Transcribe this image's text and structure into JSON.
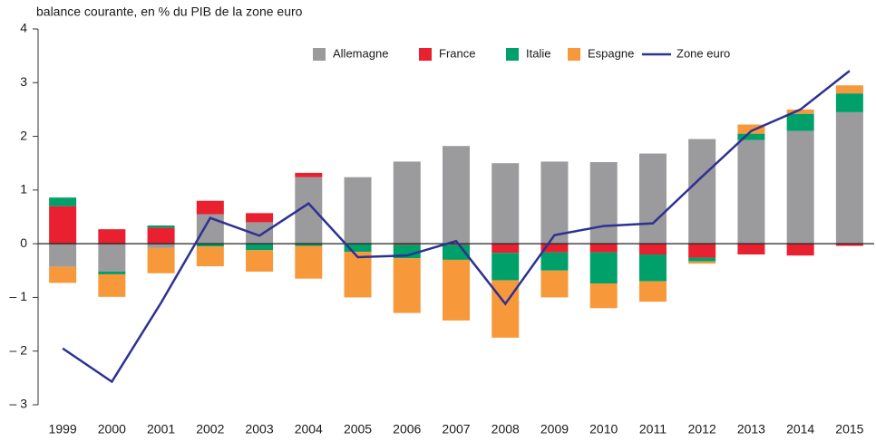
{
  "chart_data": {
    "type": "bar",
    "stacked": true,
    "title": "balance courante, en % du PIB de la zone euro",
    "categories": [
      "1999",
      "2000",
      "2001",
      "2002",
      "2003",
      "2004",
      "2005",
      "2006",
      "2007",
      "2008",
      "2009",
      "2010",
      "2011",
      "2012",
      "2013",
      "2014",
      "2015"
    ],
    "series": [
      {
        "name": "Allemagne",
        "color": "#9b9b9d",
        "type": "bar",
        "values": [
          -0.43,
          -0.52,
          -0.08,
          0.55,
          0.4,
          1.24,
          1.24,
          1.53,
          1.82,
          1.5,
          1.53,
          1.52,
          1.68,
          1.95,
          1.93,
          2.1,
          2.45
        ]
      },
      {
        "name": "France",
        "color": "#e8202f",
        "type": "bar",
        "values": [
          0.7,
          0.27,
          0.3,
          0.25,
          0.17,
          0.08,
          0,
          -0.02,
          -0.02,
          -0.17,
          -0.16,
          -0.16,
          -0.2,
          -0.26,
          -0.2,
          -0.22,
          -0.04
        ]
      },
      {
        "name": "Italie",
        "color": "#00a06a",
        "type": "bar",
        "values": [
          0.16,
          -0.05,
          0.04,
          -0.05,
          -0.12,
          -0.04,
          -0.15,
          -0.25,
          -0.28,
          -0.51,
          -0.34,
          -0.58,
          -0.5,
          -0.07,
          0.12,
          0.32,
          0.35
        ]
      },
      {
        "name": "Espagne",
        "color": "#f7993a",
        "type": "bar",
        "values": [
          -0.3,
          -0.42,
          -0.47,
          -0.37,
          -0.4,
          -0.61,
          -0.85,
          -1.02,
          -1.13,
          -1.07,
          -0.5,
          -0.46,
          -0.38,
          -0.04,
          0.17,
          0.08,
          0.15
        ]
      },
      {
        "name": "Zone euro",
        "color": "#2e3192",
        "type": "line",
        "values": [
          -1.95,
          -2.57,
          -1.1,
          0.48,
          0.15,
          0.75,
          -0.25,
          -0.22,
          0.05,
          -1.12,
          0.16,
          0.33,
          0.38,
          1.25,
          2.1,
          2.5,
          3.22
        ]
      }
    ],
    "ylim": [
      -3,
      4
    ],
    "yticks": [
      {
        "value": -3,
        "label": "– 3"
      },
      {
        "value": -2,
        "label": "– 2"
      },
      {
        "value": -1,
        "label": "– 1"
      },
      0,
      1,
      2,
      3,
      4
    ],
    "grid": false,
    "legend": "top"
  }
}
